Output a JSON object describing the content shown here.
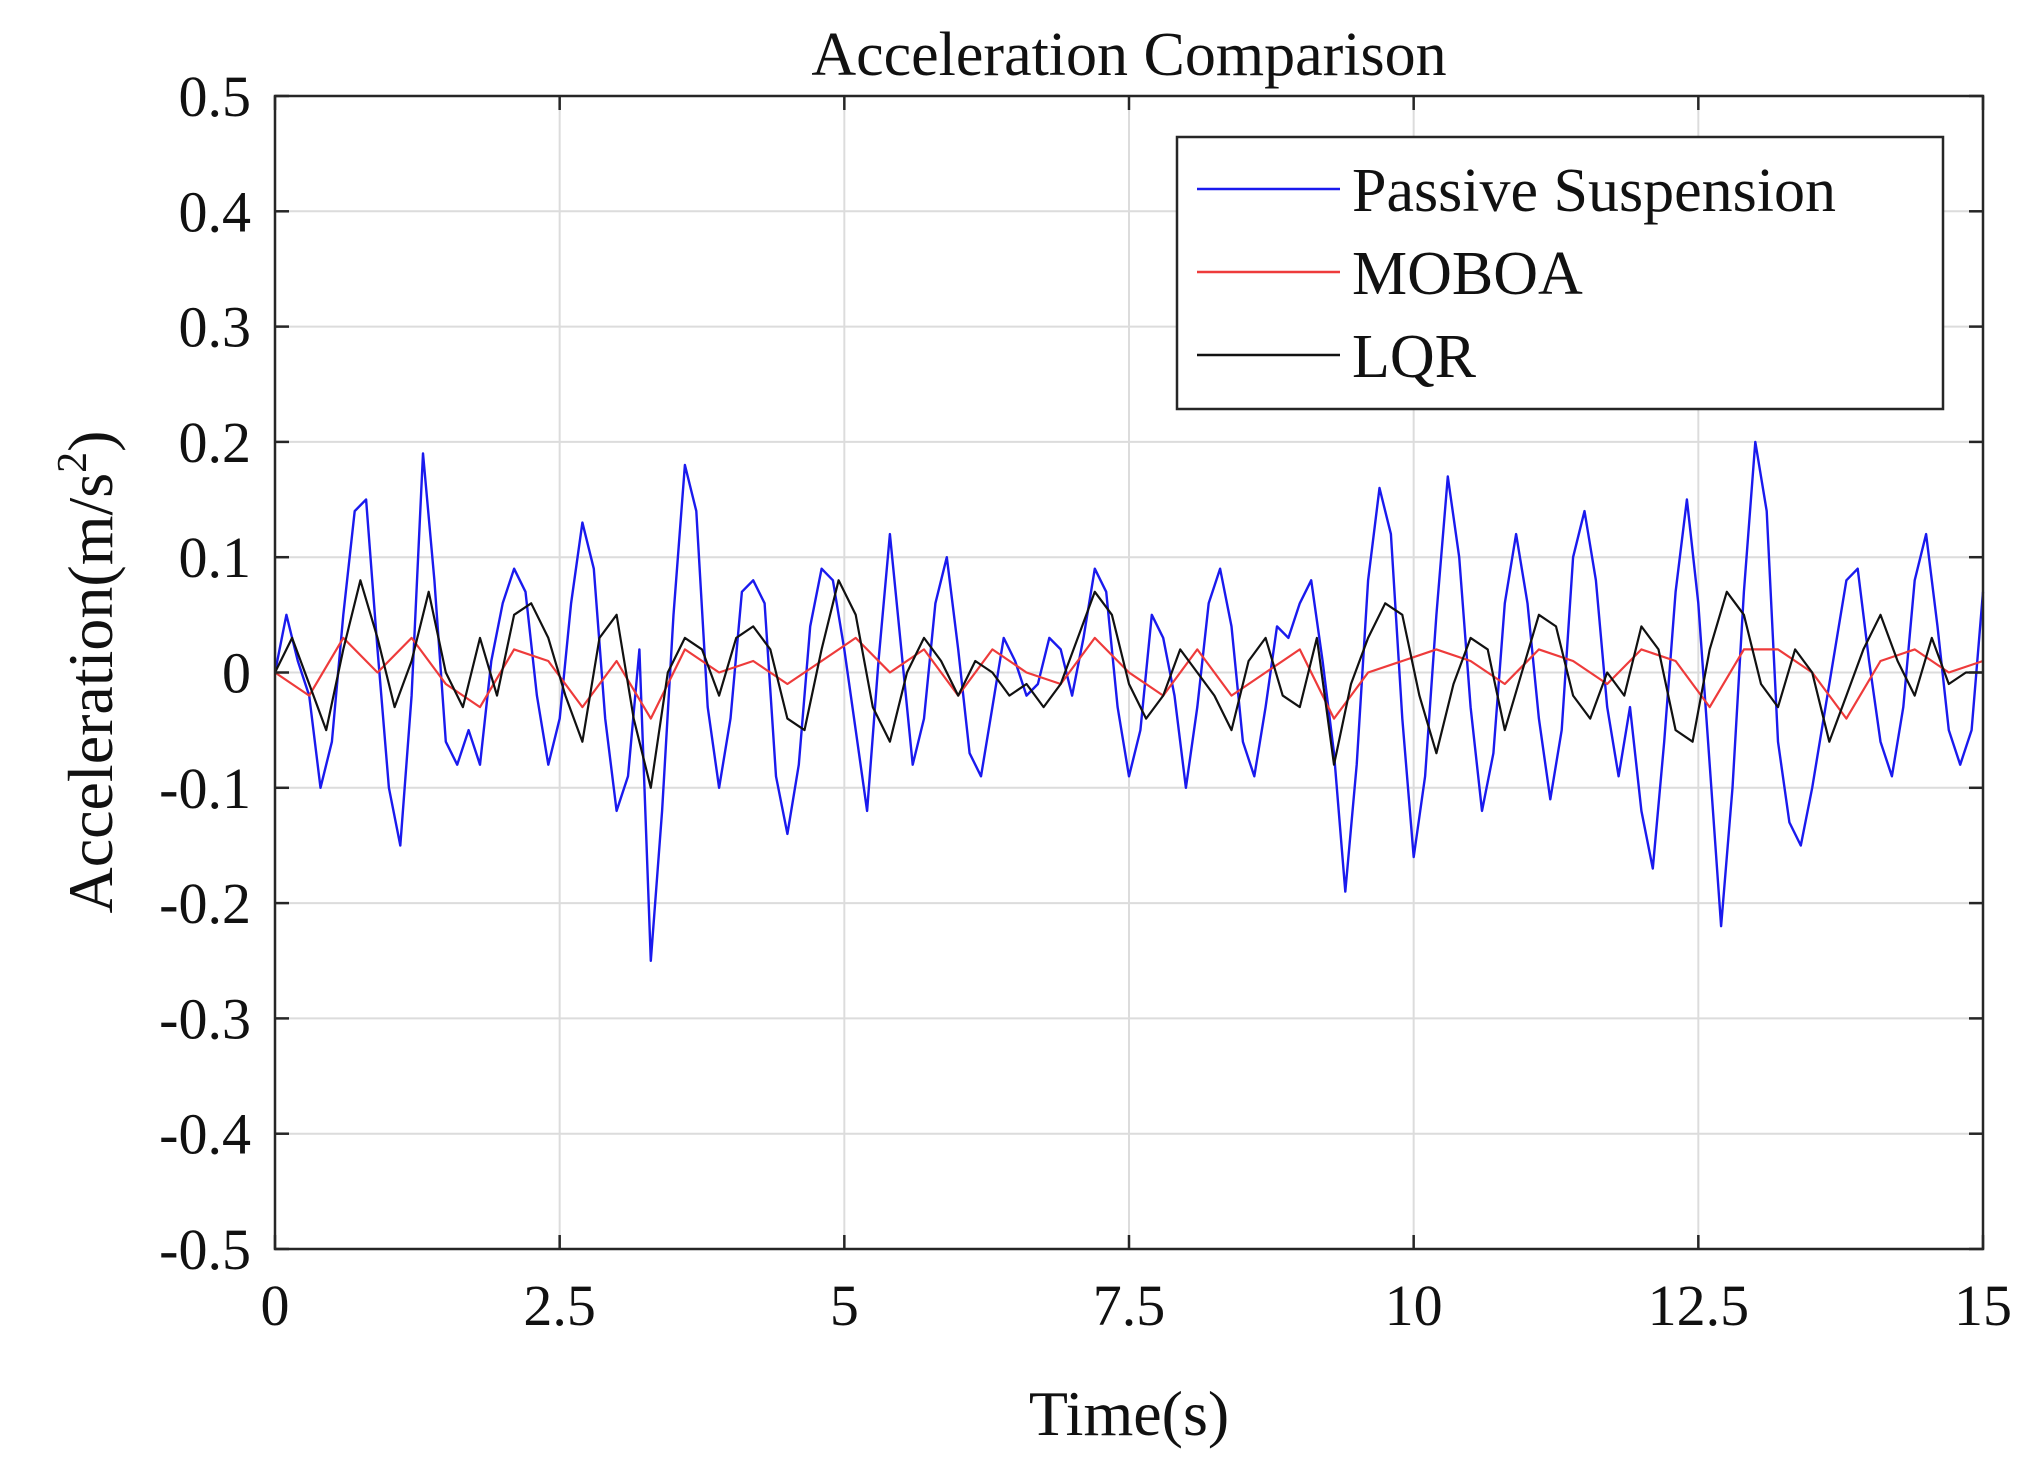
{
  "chart_data": {
    "type": "line",
    "title": "Acceleration Comparison",
    "xlabel": "Time(s)",
    "ylabel_main": "Acceleration(m/s",
    "ylabel_sup": "2",
    "ylabel_close": ")",
    "xlim": [
      0,
      15
    ],
    "ylim": [
      -0.5,
      0.5
    ],
    "grid": true,
    "legend_position": "top-right",
    "xticks": [
      0,
      2.5,
      5,
      7.5,
      10,
      12.5,
      15
    ],
    "xtick_labels": [
      "0",
      "2.5",
      "5",
      "7.5",
      "10",
      "12.5",
      "15"
    ],
    "yticks": [
      0.5,
      0.4,
      0.3,
      0.2,
      0.1,
      0,
      -0.1,
      -0.2,
      -0.3,
      -0.4,
      -0.5
    ],
    "ytick_labels": [
      "0.5",
      "0.4",
      "0.3",
      "0.2",
      "0.1",
      "0",
      "-0.1",
      "-0.2",
      "-0.3",
      "-0.4",
      "-0.5"
    ],
    "series": [
      {
        "name": "Passive Suspension",
        "color": "#1a1aee",
        "x": [
          0,
          0.1,
          0.2,
          0.3,
          0.4,
          0.5,
          0.6,
          0.7,
          0.8,
          0.9,
          1.0,
          1.1,
          1.2,
          1.3,
          1.4,
          1.5,
          1.6,
          1.7,
          1.8,
          1.9,
          2.0,
          2.1,
          2.2,
          2.3,
          2.4,
          2.5,
          2.6,
          2.7,
          2.8,
          2.9,
          3.0,
          3.1,
          3.2,
          3.3,
          3.4,
          3.5,
          3.6,
          3.7,
          3.8,
          3.9,
          4.0,
          4.1,
          4.2,
          4.3,
          4.4,
          4.5,
          4.6,
          4.7,
          4.8,
          4.9,
          5.0,
          5.1,
          5.2,
          5.3,
          5.4,
          5.5,
          5.6,
          5.7,
          5.8,
          5.9,
          6.0,
          6.1,
          6.2,
          6.3,
          6.4,
          6.5,
          6.6,
          6.7,
          6.8,
          6.9,
          7.0,
          7.1,
          7.2,
          7.3,
          7.4,
          7.5,
          7.6,
          7.7,
          7.8,
          7.9,
          8.0,
          8.1,
          8.2,
          8.3,
          8.4,
          8.5,
          8.6,
          8.7,
          8.8,
          8.9,
          9.0,
          9.1,
          9.2,
          9.3,
          9.4,
          9.5,
          9.6,
          9.7,
          9.8,
          9.9,
          10.0,
          10.1,
          10.2,
          10.3,
          10.4,
          10.5,
          10.6,
          10.7,
          10.8,
          10.9,
          11.0,
          11.1,
          11.2,
          11.3,
          11.4,
          11.5,
          11.6,
          11.7,
          11.8,
          11.9,
          12.0,
          12.1,
          12.2,
          12.3,
          12.4,
          12.5,
          12.6,
          12.7,
          12.8,
          12.9,
          13.0,
          13.1,
          13.2,
          13.3,
          13.4,
          13.5,
          13.6,
          13.7,
          13.8,
          13.9,
          14.0,
          14.1,
          14.2,
          14.3,
          14.4,
          14.5,
          14.6,
          14.7,
          14.8,
          14.9,
          15.0
        ],
        "values": [
          0.0,
          0.05,
          0.01,
          -0.02,
          -0.1,
          -0.06,
          0.05,
          0.14,
          0.15,
          0.02,
          -0.1,
          -0.15,
          -0.02,
          0.19,
          0.08,
          -0.06,
          -0.08,
          -0.05,
          -0.08,
          0.01,
          0.06,
          0.09,
          0.07,
          -0.02,
          -0.08,
          -0.04,
          0.06,
          0.13,
          0.09,
          -0.04,
          -0.12,
          -0.09,
          0.02,
          -0.25,
          -0.12,
          0.05,
          0.18,
          0.14,
          -0.03,
          -0.1,
          -0.04,
          0.07,
          0.08,
          0.06,
          -0.09,
          -0.14,
          -0.08,
          0.04,
          0.09,
          0.08,
          0.02,
          -0.05,
          -0.12,
          0.01,
          0.12,
          0.02,
          -0.08,
          -0.04,
          0.06,
          0.1,
          0.02,
          -0.07,
          -0.09,
          -0.03,
          0.03,
          0.01,
          -0.02,
          -0.01,
          0.03,
          0.02,
          -0.02,
          0.03,
          0.09,
          0.07,
          -0.03,
          -0.09,
          -0.05,
          0.05,
          0.03,
          -0.02,
          -0.1,
          -0.03,
          0.06,
          0.09,
          0.04,
          -0.06,
          -0.09,
          -0.03,
          0.04,
          0.03,
          0.06,
          0.08,
          0.01,
          -0.07,
          -0.19,
          -0.08,
          0.08,
          0.16,
          0.12,
          -0.04,
          -0.16,
          -0.09,
          0.05,
          0.17,
          0.1,
          -0.03,
          -0.12,
          -0.07,
          0.06,
          0.12,
          0.06,
          -0.04,
          -0.11,
          -0.05,
          0.1,
          0.14,
          0.08,
          -0.03,
          -0.09,
          -0.03,
          -0.12,
          -0.17,
          -0.06,
          0.07,
          0.15,
          0.06,
          -0.08,
          -0.22,
          -0.1,
          0.07,
          0.2,
          0.14,
          -0.06,
          -0.13,
          -0.15,
          -0.1,
          -0.04,
          0.02,
          0.08,
          0.09,
          0.01,
          -0.06,
          -0.09,
          -0.03,
          0.08,
          0.12,
          0.04,
          -0.05,
          -0.08,
          -0.05,
          0.07
        ]
      },
      {
        "name": "MOBOA",
        "color": "#ee3b3b",
        "x": [
          0,
          0.3,
          0.6,
          0.9,
          1.2,
          1.5,
          1.8,
          2.1,
          2.4,
          2.7,
          3.0,
          3.3,
          3.6,
          3.9,
          4.2,
          4.5,
          4.8,
          5.1,
          5.4,
          5.7,
          6.0,
          6.3,
          6.6,
          6.9,
          7.2,
          7.5,
          7.8,
          8.1,
          8.4,
          8.7,
          9.0,
          9.3,
          9.6,
          9.9,
          10.2,
          10.5,
          10.8,
          11.1,
          11.4,
          11.7,
          12.0,
          12.3,
          12.6,
          12.9,
          13.2,
          13.5,
          13.8,
          14.1,
          14.4,
          14.7,
          15.0
        ],
        "values": [
          0.0,
          -0.02,
          0.03,
          0.0,
          0.03,
          -0.01,
          -0.03,
          0.02,
          0.01,
          -0.03,
          0.01,
          -0.04,
          0.02,
          0.0,
          0.01,
          -0.01,
          0.01,
          0.03,
          0.0,
          0.02,
          -0.02,
          0.02,
          0.0,
          -0.01,
          0.03,
          0.0,
          -0.02,
          0.02,
          -0.02,
          0.0,
          0.02,
          -0.04,
          0.0,
          0.01,
          0.02,
          0.01,
          -0.01,
          0.02,
          0.01,
          -0.01,
          0.02,
          0.01,
          -0.03,
          0.02,
          0.02,
          0.0,
          -0.04,
          0.01,
          0.02,
          0.0,
          0.01
        ]
      },
      {
        "name": "LQR",
        "color": "#111111",
        "x": [
          0,
          0.15,
          0.3,
          0.45,
          0.6,
          0.75,
          0.9,
          1.05,
          1.2,
          1.35,
          1.5,
          1.65,
          1.8,
          1.95,
          2.1,
          2.25,
          2.4,
          2.55,
          2.7,
          2.85,
          3.0,
          3.15,
          3.3,
          3.45,
          3.6,
          3.75,
          3.9,
          4.05,
          4.2,
          4.35,
          4.5,
          4.65,
          4.8,
          4.95,
          5.1,
          5.25,
          5.4,
          5.55,
          5.7,
          5.85,
          6.0,
          6.15,
          6.3,
          6.45,
          6.6,
          6.75,
          6.9,
          7.05,
          7.2,
          7.35,
          7.5,
          7.65,
          7.8,
          7.95,
          8.1,
          8.25,
          8.4,
          8.55,
          8.7,
          8.85,
          9.0,
          9.15,
          9.3,
          9.45,
          9.6,
          9.75,
          9.9,
          10.05,
          10.2,
          10.35,
          10.5,
          10.65,
          10.8,
          10.95,
          11.1,
          11.25,
          11.4,
          11.55,
          11.7,
          11.85,
          12.0,
          12.15,
          12.3,
          12.45,
          12.6,
          12.75,
          12.9,
          13.05,
          13.2,
          13.35,
          13.5,
          13.65,
          13.8,
          13.95,
          14.1,
          14.25,
          14.4,
          14.55,
          14.7,
          14.85,
          15.0
        ],
        "values": [
          0.0,
          0.03,
          -0.01,
          -0.05,
          0.02,
          0.08,
          0.03,
          -0.03,
          0.01,
          0.07,
          0.0,
          -0.03,
          0.03,
          -0.02,
          0.05,
          0.06,
          0.03,
          -0.02,
          -0.06,
          0.03,
          0.05,
          -0.04,
          -0.1,
          0.0,
          0.03,
          0.02,
          -0.02,
          0.03,
          0.04,
          0.02,
          -0.04,
          -0.05,
          0.02,
          0.08,
          0.05,
          -0.03,
          -0.06,
          0.0,
          0.03,
          0.01,
          -0.02,
          0.01,
          0.0,
          -0.02,
          -0.01,
          -0.03,
          -0.01,
          0.03,
          0.07,
          0.05,
          -0.01,
          -0.04,
          -0.02,
          0.02,
          0.0,
          -0.02,
          -0.05,
          0.01,
          0.03,
          -0.02,
          -0.03,
          0.03,
          -0.08,
          -0.01,
          0.03,
          0.06,
          0.05,
          -0.02,
          -0.07,
          -0.01,
          0.03,
          0.02,
          -0.05,
          0.0,
          0.05,
          0.04,
          -0.02,
          -0.04,
          0.0,
          -0.02,
          0.04,
          0.02,
          -0.05,
          -0.06,
          0.02,
          0.07,
          0.05,
          -0.01,
          -0.03,
          0.02,
          0.0,
          -0.06,
          -0.02,
          0.02,
          0.05,
          0.01,
          -0.02,
          0.03,
          -0.01,
          0.0,
          0.0
        ]
      }
    ]
  }
}
